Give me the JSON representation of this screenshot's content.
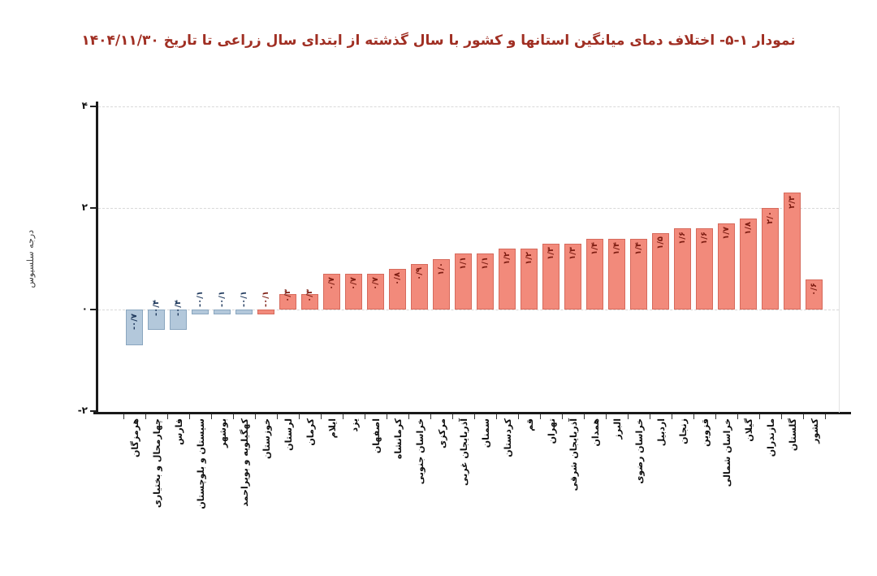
{
  "title": "نمودار ۱-۵- اختلاف دمای میانگین استانها و کشور با سال گذشته از ابتدای سال زراعی تا تاریخ ۱۴۰۴/۱۱/۳۰",
  "chart_data": {
    "type": "bar",
    "title": "نمودار ۱-۵- اختلاف دمای میانگین استانها و کشور با سال گذشته از ابتدای سال زراعی تا تاریخ ۱۴۰۴/۱۱/۳۰",
    "xlabel": "",
    "ylabel": "درجه سلسیوس",
    "ylim": [
      -2,
      4
    ],
    "ytick_values": [
      4,
      2,
      0,
      -2
    ],
    "ytick_labels": [
      "۴",
      "۲",
      "۰",
      "-۲"
    ],
    "grid": "horizontal-dashed",
    "legend_position": "none",
    "categories": [
      "هرمزگان",
      "چهارمحال و بختیاری",
      "فارس",
      "سیستان و بلوچستان",
      "بوشهر",
      "کهگیلویه و بویراحمد",
      "خوزستان",
      "لرستان",
      "کرمان",
      "ایلام",
      "یزد",
      "اصفهان",
      "کرمانشاه",
      "خراسان جنوبی",
      "مرکزی",
      "آذربایجان غربی",
      "سمنان",
      "کردستان",
      "قم",
      "تهران",
      "آذربایجان شرقی",
      "همدان",
      "البرز",
      "خراسان رضوی",
      "اردبیل",
      "زنجان",
      "قزوین",
      "خراسان شمالی",
      "گیلان",
      "مازندران",
      "گلستان",
      "کشور"
    ],
    "values": [
      -0.7,
      -0.4,
      -0.4,
      -0.1,
      -0.1,
      -0.1,
      -0.1,
      0.3,
      0.3,
      0.7,
      0.7,
      0.7,
      0.8,
      0.9,
      1.0,
      1.1,
      1.1,
      1.2,
      1.2,
      1.3,
      1.3,
      1.4,
      1.4,
      1.4,
      1.5,
      1.6,
      1.6,
      1.7,
      1.8,
      2.0,
      2.3,
      0.6
    ],
    "bar_labels": [
      "-۰/۷",
      "-۰/۴",
      "-۰/۴",
      "-۰/۱",
      "-۰/۱",
      "-۰/۱",
      "-۰/۱",
      "۰/۳",
      "۰/۳",
      "۰/۷",
      "۰/۷",
      "۰/۷",
      "۰/۸",
      "۰/۹",
      "۱/۰",
      "۱/۱",
      "۱/۱",
      "۱/۲",
      "۱/۲",
      "۱/۳",
      "۱/۳",
      "۱/۴",
      "۱/۴",
      "۱/۴",
      "۱/۵",
      "۱/۶",
      "۱/۶",
      "۱/۷",
      "۱/۸",
      "۲/۰",
      "۲/۳",
      "۰/۶"
    ],
    "bar_color_keys": [
      "blue",
      "blue",
      "blue",
      "blue",
      "blue",
      "blue",
      "red",
      "red",
      "red",
      "red",
      "red",
      "red",
      "red",
      "red",
      "red",
      "red",
      "red",
      "red",
      "red",
      "red",
      "red",
      "red",
      "red",
      "red",
      "red",
      "red",
      "red",
      "red",
      "red",
      "red",
      "red",
      "red"
    ],
    "colors": {
      "red_fill": "#f28a7b",
      "red_border": "#d66a5c",
      "red_text": "#7d1c11",
      "blue_fill": "#b3c8db",
      "blue_border": "#8aa6bf",
      "blue_text": "#203a5e",
      "title": "#a02f23",
      "grid": "#d9d9d9",
      "axis": "#1a1a1a"
    }
  }
}
